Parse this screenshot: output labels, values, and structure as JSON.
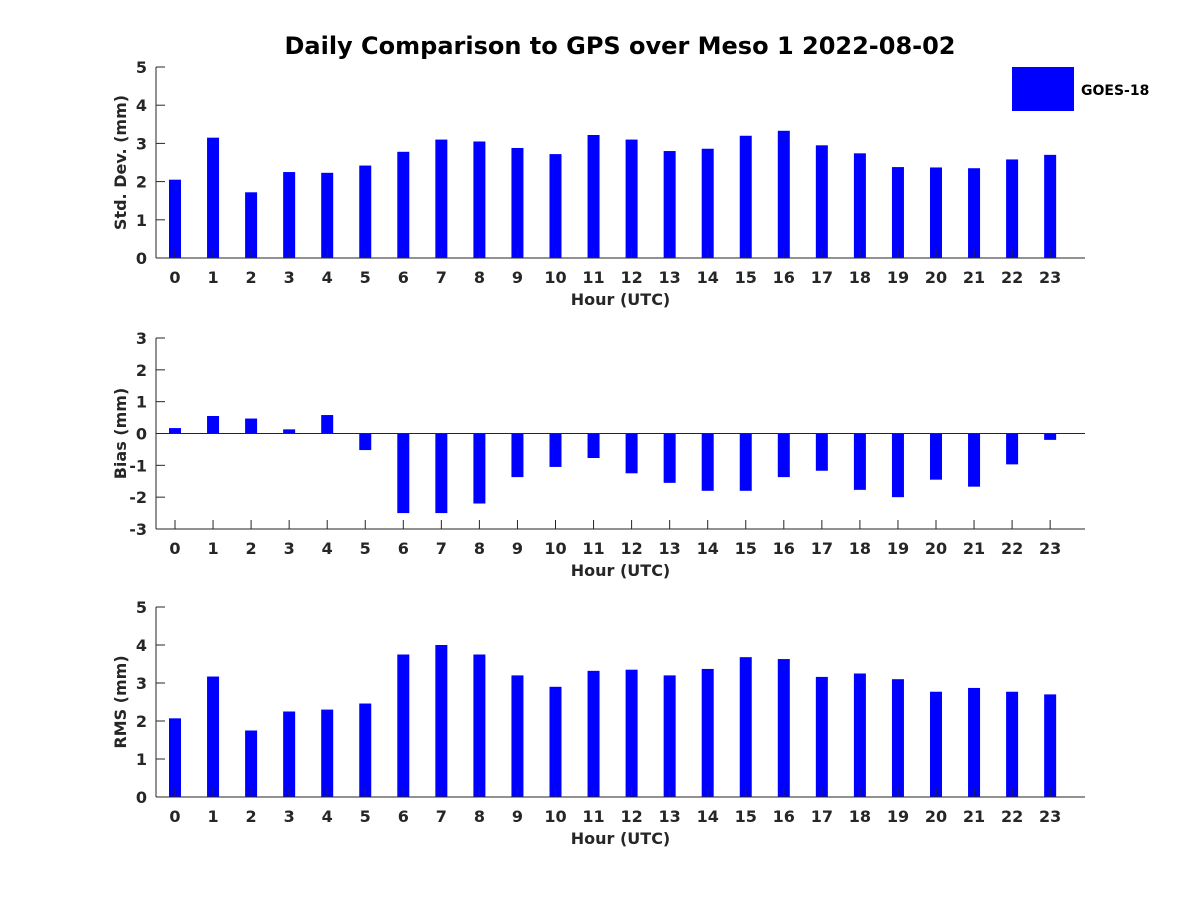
{
  "chart_data": {
    "title": "Daily Comparison to GPS over Meso 1 2022-08-02",
    "series_color": "#0000ff",
    "legend": {
      "label": "GOES-18",
      "placement": "top-right"
    },
    "panels": [
      {
        "type": "bar",
        "ylabel": "Std. Dev. (mm)",
        "xlabel": "Hour (UTC)",
        "ylim": [
          0,
          5
        ],
        "yticks": [
          0,
          1,
          2,
          3,
          4,
          5
        ],
        "categories": [
          0,
          1,
          2,
          3,
          4,
          5,
          6,
          7,
          8,
          9,
          10,
          11,
          12,
          13,
          14,
          15,
          16,
          17,
          18,
          19,
          20,
          21,
          22,
          23
        ],
        "series": [
          {
            "name": "GOES-18",
            "values": [
              2.05,
              3.15,
              1.72,
              2.25,
              2.23,
              2.42,
              2.78,
              3.1,
              3.05,
              2.88,
              2.72,
              3.22,
              3.1,
              2.8,
              2.86,
              3.2,
              3.33,
              2.95,
              2.74,
              2.38,
              2.37,
              2.35,
              2.58,
              2.7
            ]
          }
        ]
      },
      {
        "type": "bar",
        "ylabel": "Bias (mm)",
        "xlabel": "Hour (UTC)",
        "ylim": [
          -3,
          3
        ],
        "yticks": [
          -3,
          -2,
          -1,
          0,
          1,
          2,
          3
        ],
        "categories": [
          0,
          1,
          2,
          3,
          4,
          5,
          6,
          7,
          8,
          9,
          10,
          11,
          12,
          13,
          14,
          15,
          16,
          17,
          18,
          19,
          20,
          21,
          22,
          23
        ],
        "series": [
          {
            "name": "GOES-18",
            "values": [
              0.17,
              0.55,
              0.47,
              0.13,
              0.58,
              -0.52,
              -2.5,
              -2.5,
              -2.2,
              -1.37,
              -1.05,
              -0.77,
              -1.25,
              -1.55,
              -1.8,
              -1.8,
              -1.37,
              -1.17,
              -1.77,
              -2.0,
              -1.45,
              -1.67,
              -0.97,
              -0.2
            ]
          }
        ]
      },
      {
        "type": "bar",
        "ylabel": "RMS (mm)",
        "xlabel": "Hour (UTC)",
        "ylim": [
          0,
          5
        ],
        "yticks": [
          0,
          1,
          2,
          3,
          4,
          5
        ],
        "categories": [
          0,
          1,
          2,
          3,
          4,
          5,
          6,
          7,
          8,
          9,
          10,
          11,
          12,
          13,
          14,
          15,
          16,
          17,
          18,
          19,
          20,
          21,
          22,
          23
        ],
        "series": [
          {
            "name": "GOES-18",
            "values": [
              2.07,
              3.17,
              1.75,
              2.25,
              2.3,
              2.46,
              3.75,
              4.0,
              3.75,
              3.2,
              2.9,
              3.32,
              3.35,
              3.2,
              3.37,
              3.68,
              3.63,
              3.16,
              3.25,
              3.1,
              2.77,
              2.87,
              2.77,
              2.7
            ]
          }
        ]
      }
    ]
  }
}
